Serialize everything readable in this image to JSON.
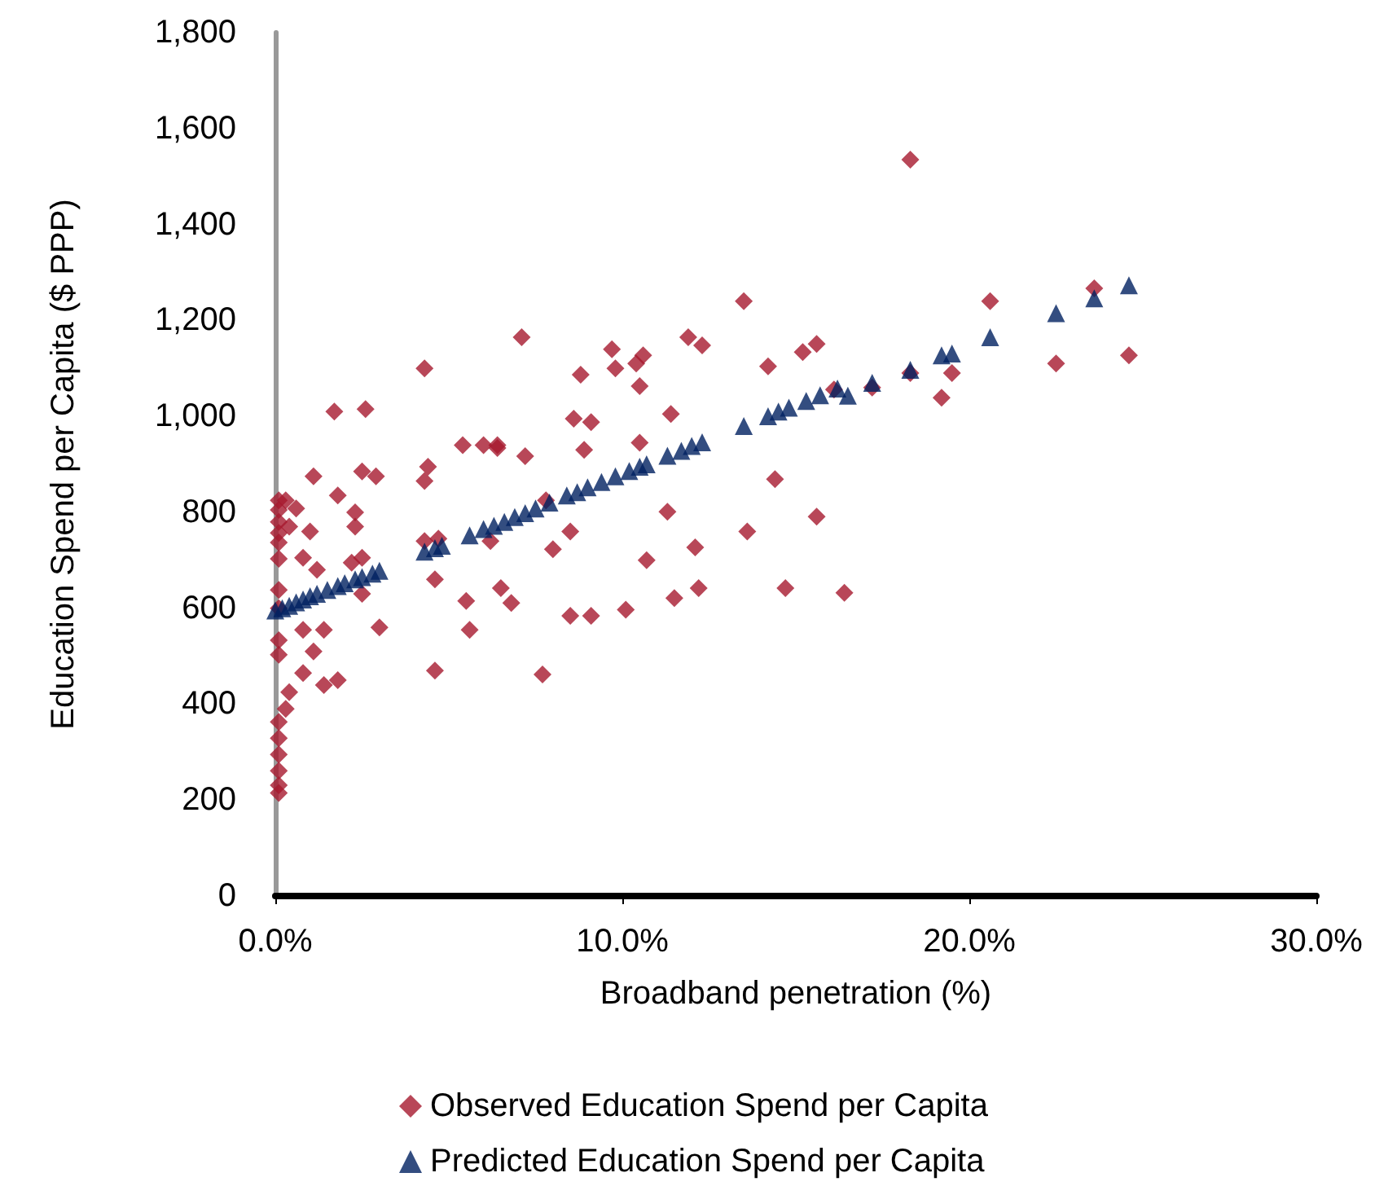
{
  "chart_data": {
    "type": "scatter",
    "xlabel": "Broadband penetration (%)",
    "ylabel": "Education Spend per Capita ($ PPP)",
    "xlim": [
      0,
      30
    ],
    "xticks": [
      {
        "value": 0,
        "label": "0.0%"
      },
      {
        "value": 10,
        "label": "10.0%"
      },
      {
        "value": 20,
        "label": "20.0%"
      },
      {
        "value": 30,
        "label": "30.0%"
      }
    ],
    "ylim": [
      0,
      1800
    ],
    "yticks": [
      {
        "value": 0,
        "label": "0"
      },
      {
        "value": 200,
        "label": "200"
      },
      {
        "value": 400,
        "label": "400"
      },
      {
        "value": 600,
        "label": "600"
      },
      {
        "value": 800,
        "label": "800"
      },
      {
        "value": 1000,
        "label": "1,000"
      },
      {
        "value": 1200,
        "label": "1,200"
      },
      {
        "value": 1400,
        "label": "1,400"
      },
      {
        "value": 1600,
        "label": "1,600"
      },
      {
        "value": 1800,
        "label": "1,800"
      }
    ],
    "grid": false,
    "legend": "bottom",
    "series": [
      {
        "name": "Observed Education Spend per Capita",
        "color": "#a6192e",
        "marker": "diamond",
        "x": [
          1.7,
          2.6,
          4.3,
          5.4,
          6.0,
          6.4,
          4.4,
          4.3,
          1.1,
          1.8,
          2.5,
          2.9,
          2.3,
          2.3,
          1.0,
          0.8,
          1.2,
          2.2,
          2.5,
          4.3,
          4.7,
          4.6,
          5.5,
          5.6,
          4.6,
          3.0,
          2.5,
          0.8,
          1.4,
          1.1,
          0.8,
          1.4,
          1.8,
          0.4,
          0.3,
          0.1,
          0.1,
          0.1,
          0.1,
          0.1,
          0.1,
          0.1,
          0.1,
          0.1,
          0.1,
          0.1,
          0.1,
          0.1,
          0.1,
          0.1,
          0.1,
          0.3,
          0.6,
          0.4,
          7.1,
          9.7,
          9.8,
          10.4,
          10.6,
          10.5,
          8.8,
          8.6,
          9.1,
          8.9,
          10.5,
          11.4,
          11.9,
          12.3,
          13.5,
          14.2,
          15.2,
          15.6,
          6.4,
          7.2,
          7.8,
          8.5,
          8.0,
          6.2,
          6.5,
          6.8,
          7.7,
          8.5,
          9.1,
          10.1,
          10.7,
          11.3,
          12.1,
          11.5,
          12.2,
          13.6,
          14.4,
          14.7,
          15.6,
          16.4,
          18.3,
          20.6,
          23.6,
          24.6,
          22.5,
          19.2,
          19.5,
          18.3,
          17.2,
          16.1
        ],
        "values": [
          1010,
          1015,
          1100,
          940,
          940,
          940,
          895,
          865,
          875,
          835,
          885,
          875,
          800,
          770,
          760,
          705,
          680,
          695,
          705,
          740,
          745,
          660,
          615,
          555,
          470,
          560,
          630,
          555,
          555,
          510,
          465,
          440,
          450,
          425,
          390,
          825,
          805,
          780,
          757,
          737,
          703,
          638,
          600,
          533,
          503,
          363,
          329,
          295,
          261,
          231,
          215,
          825,
          808,
          770,
          1165,
          1140,
          1100,
          1110,
          1127,
          1063,
          1087,
          995,
          988,
          930,
          945,
          1005,
          1165,
          1148,
          1240,
          1104,
          1134,
          1151,
          934,
          917,
          825,
          760,
          723,
          740,
          642,
          611,
          462,
          584,
          584,
          597,
          700,
          801,
          727,
          621,
          642,
          760,
          869,
          642,
          791,
          632,
          1535,
          1240,
          1267,
          1127,
          1110,
          1039,
          1090,
          1090,
          1060,
          1056
        ]
      },
      {
        "name": "Predicted Education Spend per Capita",
        "color": "#002060",
        "marker": "triangle",
        "x": [
          0,
          0.2,
          0.4,
          0.6,
          0.8,
          1.0,
          1.2,
          1.5,
          1.8,
          2.0,
          2.3,
          2.5,
          2.8,
          3.0,
          4.3,
          4.6,
          4.8,
          5.6,
          6.0,
          6.3,
          6.6,
          6.9,
          7.2,
          7.5,
          7.9,
          8.4,
          8.7,
          9.0,
          9.4,
          9.8,
          10.2,
          10.5,
          10.7,
          11.3,
          11.7,
          12.0,
          12.3,
          13.5,
          14.2,
          14.5,
          14.8,
          15.3,
          15.7,
          16.2,
          16.5,
          17.2,
          18.3,
          19.2,
          19.5,
          20.6,
          22.5,
          23.6,
          24.6
        ],
        "values": [
          595,
          600,
          605,
          612,
          618,
          625,
          630,
          638,
          646,
          652,
          660,
          665,
          672,
          678,
          718,
          725,
          730,
          752,
          765,
          772,
          780,
          790,
          798,
          808,
          820,
          835,
          842,
          852,
          863,
          875,
          886,
          895,
          900,
          918,
          928,
          938,
          946,
          980,
          1000,
          1010,
          1018,
          1032,
          1044,
          1058,
          1043,
          1070,
          1097,
          1127,
          1131,
          1165,
          1215,
          1246,
          1273
        ]
      }
    ]
  }
}
